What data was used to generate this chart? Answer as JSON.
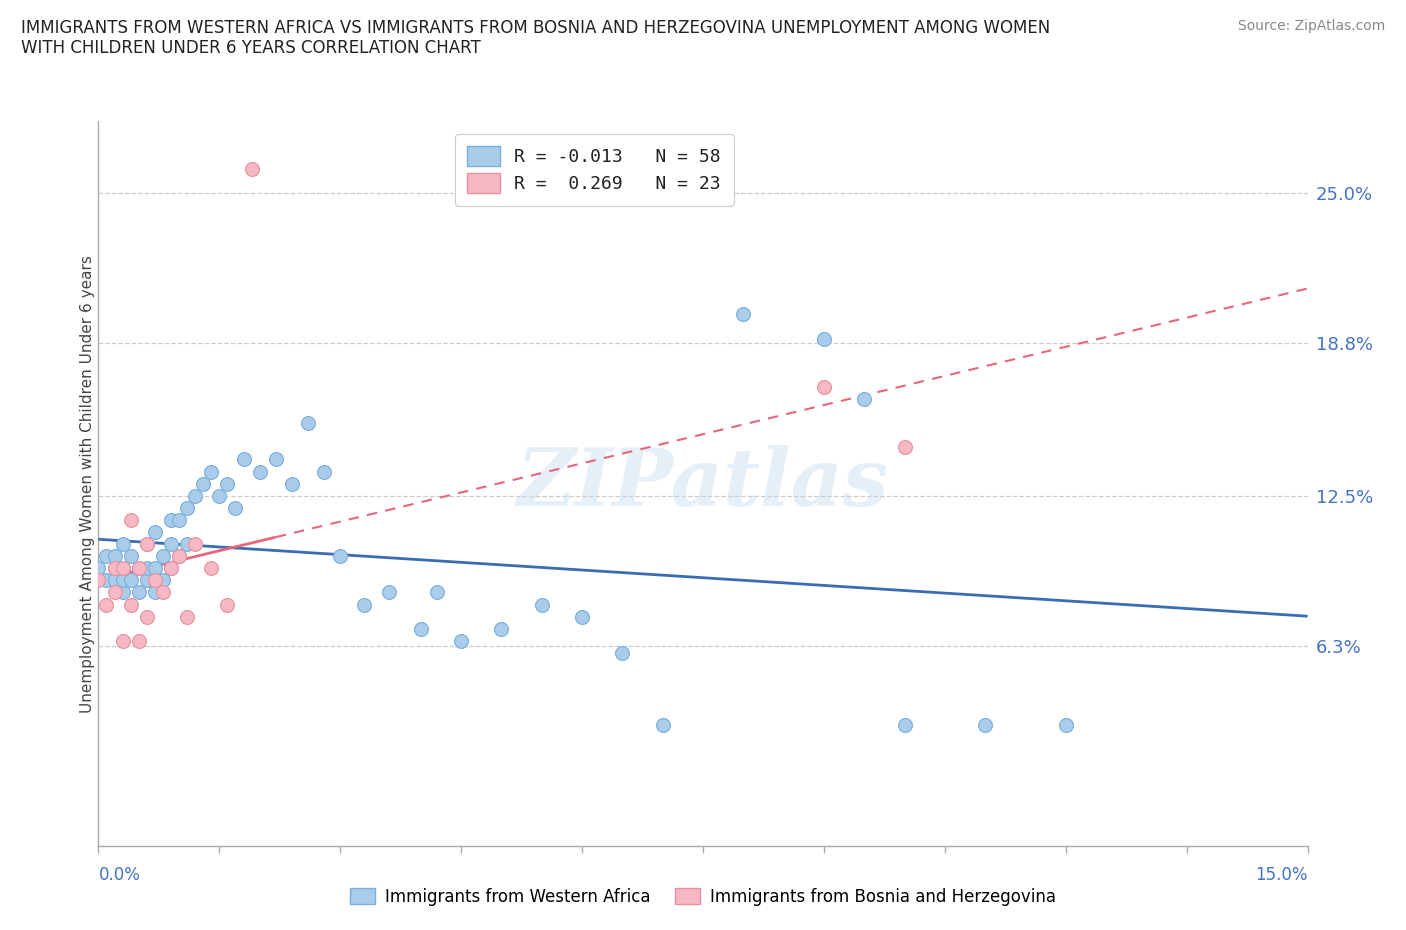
{
  "title": "IMMIGRANTS FROM WESTERN AFRICA VS IMMIGRANTS FROM BOSNIA AND HERZEGOVINA UNEMPLOYMENT AMONG WOMEN\nWITH CHILDREN UNDER 6 YEARS CORRELATION CHART",
  "source": "Source: ZipAtlas.com",
  "ylabel": "Unemployment Among Women with Children Under 6 years",
  "ytick_labels": [
    "25.0%",
    "18.8%",
    "12.5%",
    "6.3%"
  ],
  "ytick_values": [
    0.25,
    0.188,
    0.125,
    0.063
  ],
  "xlim": [
    0.0,
    0.15
  ],
  "ylim": [
    -0.02,
    0.28
  ],
  "color_western": "#A8CCEA",
  "color_bosnia": "#F5B8C4",
  "trendline_western_color": "#3B6BB5",
  "trendline_bosnia_color": "#E8657A",
  "watermark": "ZIPatlas",
  "legend_r1_r": "R = ",
  "legend_r1_v": "-0.013",
  "legend_r1_n": "N = 58",
  "legend_r2_r": "R =  ",
  "legend_r2_v": "0.269",
  "legend_r2_n": "N = 23",
  "western_x": [
    0.0,
    0.001,
    0.001,
    0.002,
    0.002,
    0.002,
    0.003,
    0.003,
    0.003,
    0.003,
    0.004,
    0.004,
    0.005,
    0.005,
    0.006,
    0.006,
    0.006,
    0.007,
    0.007,
    0.007,
    0.008,
    0.008,
    0.009,
    0.009,
    0.009,
    0.01,
    0.01,
    0.011,
    0.011,
    0.012,
    0.013,
    0.014,
    0.015,
    0.016,
    0.017,
    0.018,
    0.02,
    0.022,
    0.024,
    0.026,
    0.028,
    0.03,
    0.033,
    0.036,
    0.04,
    0.042,
    0.045,
    0.05,
    0.055,
    0.06,
    0.065,
    0.07,
    0.08,
    0.09,
    0.095,
    0.1,
    0.11,
    0.12
  ],
  "western_y": [
    0.095,
    0.09,
    0.1,
    0.09,
    0.095,
    0.1,
    0.085,
    0.09,
    0.095,
    0.105,
    0.09,
    0.1,
    0.085,
    0.095,
    0.09,
    0.095,
    0.105,
    0.085,
    0.095,
    0.11,
    0.09,
    0.1,
    0.095,
    0.105,
    0.115,
    0.1,
    0.115,
    0.105,
    0.12,
    0.125,
    0.13,
    0.135,
    0.125,
    0.13,
    0.12,
    0.14,
    0.135,
    0.14,
    0.13,
    0.155,
    0.135,
    0.1,
    0.08,
    0.085,
    0.07,
    0.085,
    0.065,
    0.07,
    0.08,
    0.075,
    0.06,
    0.03,
    0.2,
    0.19,
    0.165,
    0.03,
    0.03,
    0.03
  ],
  "bosnia_x": [
    0.0,
    0.001,
    0.002,
    0.002,
    0.003,
    0.003,
    0.004,
    0.004,
    0.005,
    0.005,
    0.006,
    0.006,
    0.007,
    0.008,
    0.009,
    0.01,
    0.011,
    0.012,
    0.014,
    0.016,
    0.019,
    0.09,
    0.1
  ],
  "bosnia_y": [
    0.09,
    0.08,
    0.085,
    0.095,
    0.065,
    0.095,
    0.08,
    0.115,
    0.065,
    0.095,
    0.075,
    0.105,
    0.09,
    0.085,
    0.095,
    0.1,
    0.075,
    0.105,
    0.095,
    0.08,
    0.26,
    0.17,
    0.145
  ]
}
